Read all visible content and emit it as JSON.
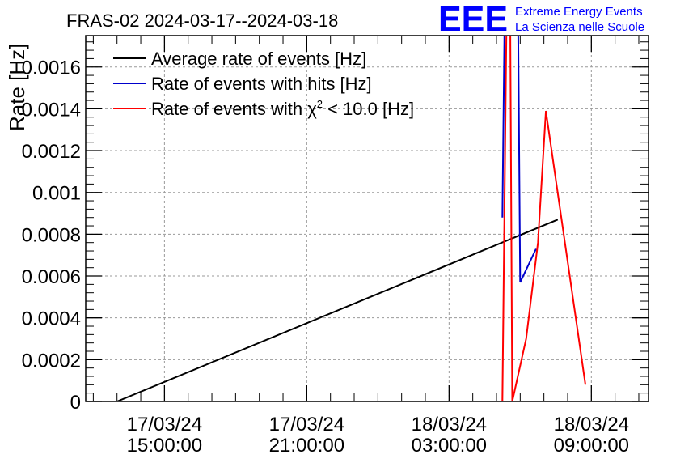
{
  "chart_data": {
    "type": "line",
    "title": "FRAS-02 2024-03-17--2024-03-18",
    "ylabel": "Rate [Hz]",
    "xlabel": "",
    "ylim": [
      0,
      0.00175
    ],
    "x_ticks": [
      {
        "date": "17/03/24",
        "time": "15:00:00",
        "hours": 15
      },
      {
        "date": "17/03/24",
        "time": "21:00:00",
        "hours": 21
      },
      {
        "date": "18/03/24",
        "time": "03:00:00",
        "hours": 27
      },
      {
        "date": "18/03/24",
        "time": "09:00:00",
        "hours": 33
      }
    ],
    "y_ticks": [
      "0",
      "0.0002",
      "0.0004",
      "0.0006",
      "0.0008",
      "0.001",
      "0.0012",
      "0.0014",
      "0.0016"
    ],
    "grid": true,
    "legend_placement": "top-left",
    "logo": {
      "text": "EEE",
      "line1": "Extreme Energy Events",
      "line2": "La Scienza nelle Scuole",
      "color": "#0000ff"
    },
    "series": [
      {
        "name": "Average rate of events [Hz]",
        "legend_text": "Average rate of events [Hz]",
        "color": "#000000",
        "points": [
          [
            "17/03 13:00",
            0.0
          ],
          [
            "18/03 07:35",
            0.00087
          ]
        ]
      },
      {
        "name": "Rate of events with hits [Hz]",
        "legend_text": "Rate of events with hits [Hz]",
        "color": "#0000cc",
        "points": [
          [
            "18/03 05:15",
            0.00088
          ],
          [
            "18/03 05:20",
            0.00175
          ],
          [
            "18/03 05:55",
            0.00175
          ],
          [
            "18/03 06:00",
            0.00057
          ],
          [
            "18/03 06:40",
            0.00073
          ]
        ]
      },
      {
        "name": "Rate of events with χ² < 10.0 [Hz]",
        "legend_text": "Rate of events with χ",
        "legend_sup": "2",
        "legend_tail": " < 10.0 [Hz]",
        "color": "#ff0000",
        "points": [
          [
            "18/03 05:15",
            0.0
          ],
          [
            "18/03 05:25",
            0.00175
          ],
          [
            "18/03 05:35",
            0.00175
          ],
          [
            "18/03 05:40",
            0.0
          ],
          [
            "18/03 06:15",
            0.0003
          ],
          [
            "18/03 06:45",
            0.00076
          ],
          [
            "18/03 07:05",
            0.00139
          ],
          [
            "18/03 08:45",
            8e-05
          ]
        ]
      }
    ]
  }
}
